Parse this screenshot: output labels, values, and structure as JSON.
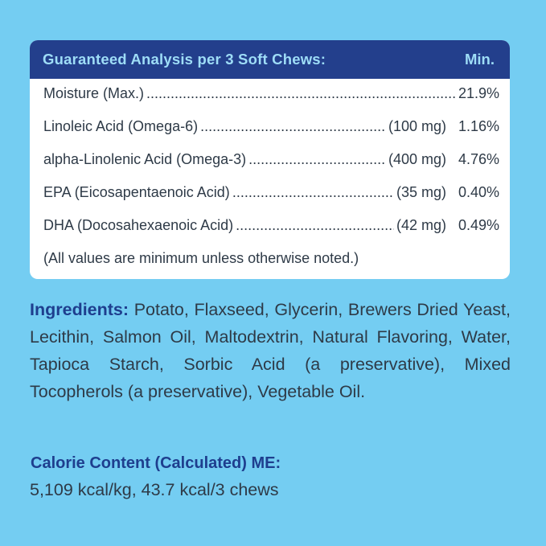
{
  "colors": {
    "background": "#74CDF2",
    "header_bg": "#233F8C",
    "header_text": "#9EDDF7",
    "accent_text": "#1E3E8E",
    "body_text": "#2e3a47",
    "panel_bg": "#FFFFFF"
  },
  "analysis": {
    "title": "Guaranteed Analysis per 3 Soft Chews:",
    "min_label": "Min.",
    "rows": [
      {
        "label": "Moisture (Max.)",
        "amount": "",
        "value": "21.9%"
      },
      {
        "label": "Linoleic Acid (Omega-6)",
        "amount": "(100 mg)",
        "value": "1.16%"
      },
      {
        "label": "alpha-Linolenic Acid (Omega-3)",
        "amount": "(400 mg)",
        "value": "4.76%"
      },
      {
        "label": "EPA (Eicosapentaenoic Acid)",
        "amount": "(35 mg)",
        "value": "0.40%"
      },
      {
        "label": "DHA (Docosahexaenoic Acid)",
        "amount": "(42 mg)",
        "value": "0.49%"
      }
    ],
    "note": "(All values are minimum unless otherwise noted.)"
  },
  "ingredients": {
    "label": "Ingredients:",
    "text": "Potato, Flaxseed, Glycerin, Brewers Dried Yeast, Lecithin, Salmon Oil, Maltodextrin, Natural Flavoring, Water, Tapioca Starch, Sorbic Acid (a preservative), Mixed Tocopherols (a preservative), Vegetable Oil."
  },
  "calorie": {
    "title": "Calorie Content (Calculated) ME:",
    "value": "5,109 kcal/kg, 43.7 kcal/3 chews"
  }
}
